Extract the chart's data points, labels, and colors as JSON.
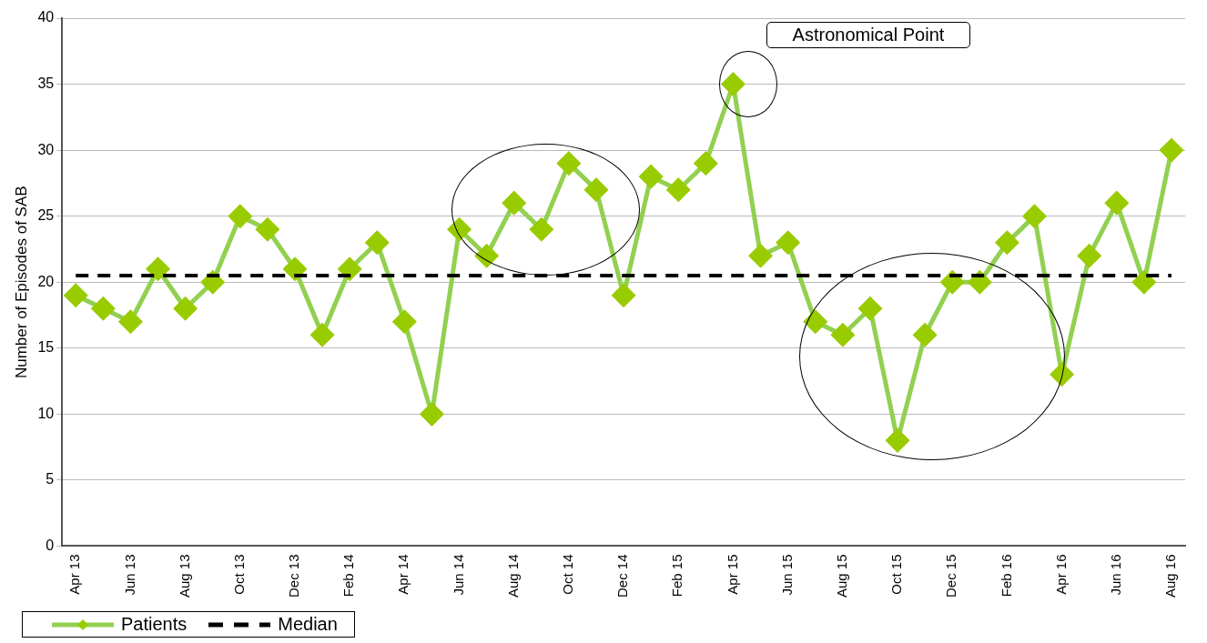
{
  "chart_data": {
    "type": "line",
    "ylabel": "Number of Episodes of SAB",
    "categories": [
      "Apr 13",
      null,
      "Jun 13",
      null,
      "Aug 13",
      null,
      "Oct 13",
      null,
      "Dec 13",
      null,
      "Feb 14",
      null,
      "Apr 14",
      null,
      "Jun 14",
      null,
      "Aug 14",
      null,
      "Oct 14",
      null,
      "Dec 14",
      null,
      "Feb 15",
      null,
      "Apr 15",
      null,
      "Jun 15",
      null,
      "Aug 15",
      null,
      "Oct 15",
      null,
      "Dec 15",
      null,
      "Feb 16",
      null,
      "Apr 16",
      null,
      "Jun 16",
      null,
      "Aug 16"
    ],
    "series": [
      {
        "name": "Patients",
        "color": "#92d050",
        "marker": "diamond",
        "line_style": "solid",
        "values": [
          19,
          18,
          17,
          21,
          18,
          20,
          25,
          24,
          21,
          16,
          21,
          23,
          17,
          10,
          24,
          22,
          26,
          24,
          29,
          27,
          19,
          28,
          27,
          29,
          35,
          22,
          23,
          17,
          16,
          18,
          8,
          16,
          20,
          20,
          23,
          25,
          13,
          22,
          26,
          20,
          30
        ]
      },
      {
        "name": "Median",
        "color": "#000000",
        "marker": "none",
        "line_style": "dashed",
        "values": [
          20.5,
          20.5,
          20.5,
          20.5,
          20.5,
          20.5,
          20.5,
          20.5,
          20.5,
          20.5,
          20.5,
          20.5,
          20.5,
          20.5,
          20.5,
          20.5,
          20.5,
          20.5,
          20.5,
          20.5,
          20.5,
          20.5,
          20.5,
          20.5,
          20.5,
          20.5,
          20.5,
          20.5,
          20.5,
          20.5,
          20.5,
          20.5,
          20.5,
          20.5,
          20.5,
          20.5,
          20.5,
          20.5,
          20.5,
          20.5,
          20.5
        ]
      }
    ],
    "ylim": [
      0,
      40
    ],
    "yticks": [
      0,
      5,
      10,
      15,
      20,
      25,
      30,
      35,
      40
    ],
    "grid": "y",
    "legend": "bottom left",
    "annotations": [
      "Astronomical Point"
    ]
  }
}
